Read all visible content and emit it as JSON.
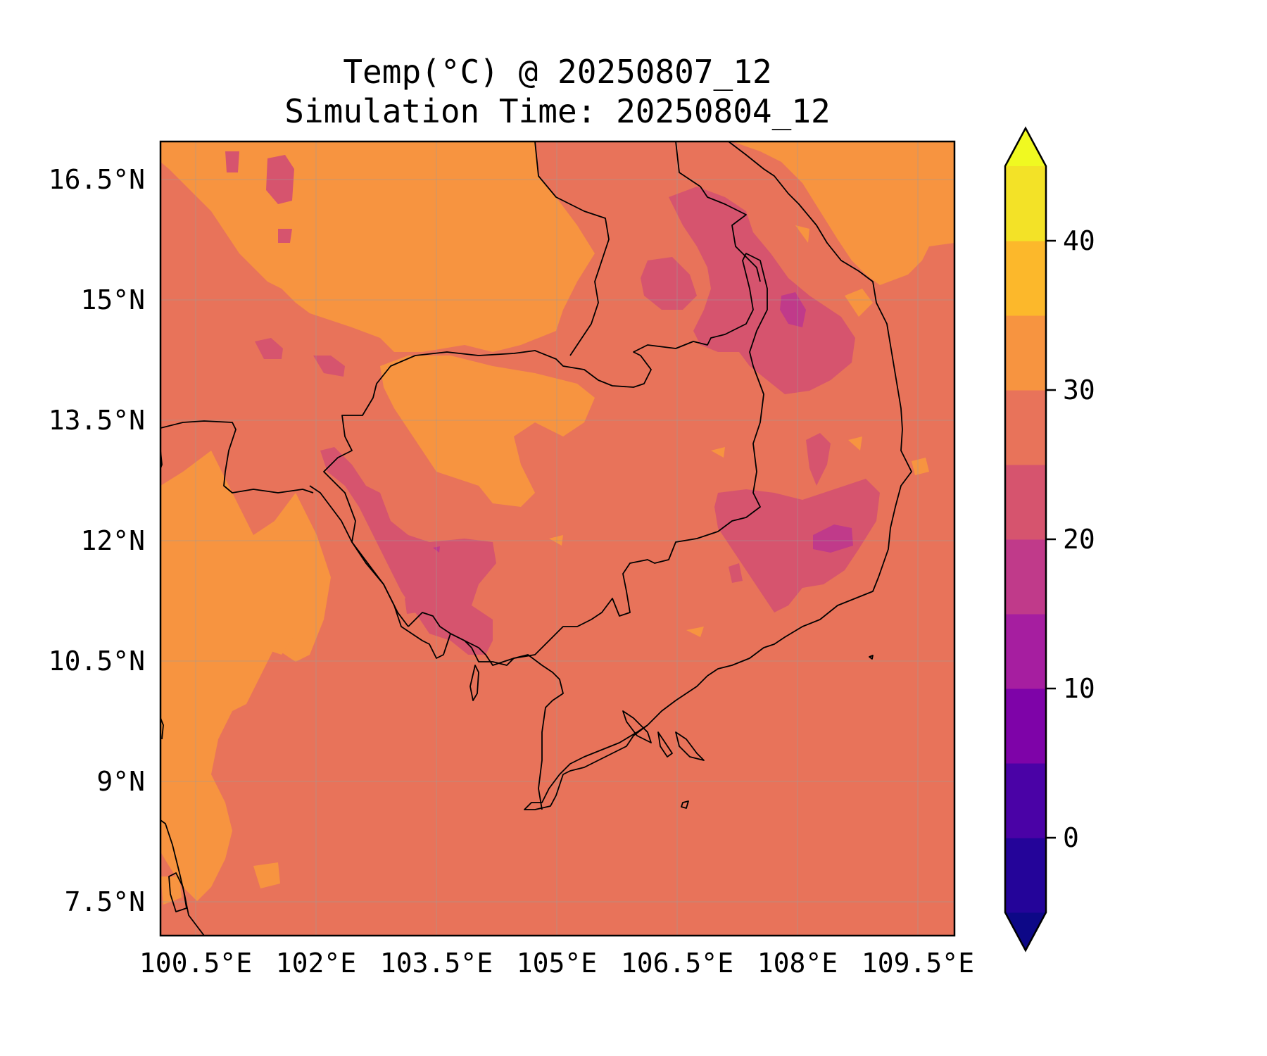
{
  "title": {
    "line1": "Temp(°C) @ 20250807_12",
    "line2": "Simulation Time: 20250804_12"
  },
  "map": {
    "variable": "Temp(°C)",
    "lon_range": [
      100.5,
      110.4
    ],
    "lat_range": [
      7.0,
      16.9
    ],
    "lon_ticks": [
      "100.5°E",
      "102°E",
      "103.5°E",
      "105°E",
      "106.5°E",
      "108°E",
      "109.5°E"
    ],
    "lat_ticks": [
      "16.5°N",
      "15°N",
      "13.5°N",
      "12°N",
      "10.5°N",
      "9°N",
      "7.5°N"
    ],
    "gridlines": true,
    "coastlines": true,
    "borders": true
  },
  "colorbar": {
    "colormap": "plasma",
    "extend": "both",
    "levels": [
      -5,
      0,
      5,
      10,
      15,
      20,
      25,
      30,
      35,
      40,
      45
    ],
    "tick_labels": [
      "0",
      "10",
      "20",
      "30",
      "40"
    ],
    "colors": [
      "#0d0887",
      "#240499",
      "#4a02a6",
      "#7e03a8",
      "#a61ea0",
      "#c03a8a",
      "#d6546e",
      "#e8735a",
      "#f79440",
      "#fcb82b",
      "#f3e227",
      "#f0f921"
    ]
  }
}
